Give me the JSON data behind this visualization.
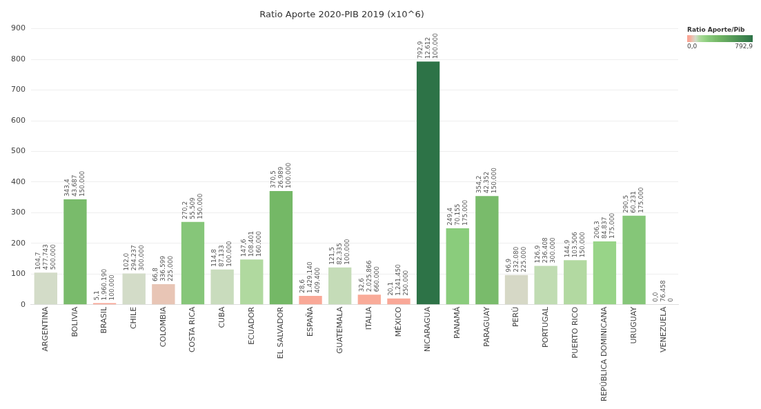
{
  "chart_data": {
    "type": "bar",
    "title": "Ratio Aporte 2020-PIB 2019 (x10^6)",
    "categories": [
      "ARGENTINA",
      "BOLIVIA",
      "BRASIL",
      "CHILE",
      "COLOMBIA",
      "COSTA RICA",
      "CUBA",
      "ECUADOR",
      "EL SALVADOR",
      "ESPAÑA",
      "GUATEMALA",
      "ITALIA",
      "MÉXICO",
      "NICARAGUA",
      "PANAMÁ",
      "PARAGUAY",
      "PERÚ",
      "PORTUGAL",
      "PUERTO RICO",
      "REPÚBLICA DOMINICANA",
      "URUGUAY",
      "VENEZUELA"
    ],
    "values": [
      104.7,
      343.4,
      5.1,
      102.0,
      66.8,
      270.2,
      114.8,
      147.6,
      370.5,
      28.6,
      121.5,
      32.6,
      20.1,
      792.9,
      249.4,
      354.2,
      96.9,
      126.9,
      144.9,
      206.3,
      290.5,
      0.0
    ],
    "colors": [
      "#d3dcc8",
      "#79bb6b",
      "#f9a594",
      "#d3dcc8",
      "#e8c5b5",
      "#86c679",
      "#c9dcbd",
      "#b0d99f",
      "#74b866",
      "#f9a897",
      "#c5dcb8",
      "#f9ab99",
      "#f9a797",
      "#2d7347",
      "#8acc7c",
      "#79bb6b",
      "#d6d8c6",
      "#c0dcb2",
      "#b2d9a1",
      "#98d488",
      "#85c678",
      "#f8a090"
    ],
    "value_labels": [
      "104,7\n477.743\n500.000",
      "343,4\n43.687\n150.000",
      "5,1\n1.960.190\n100.000",
      "102,0\n294.237\n300.000",
      "66,8\n336.599\n225.000",
      "270,2\n55.509\n150.000",
      "114,8\n87.133\n100.000",
      "147,6\n108.401\n160.000",
      "370,5\n26.989\n100.000",
      "28,6\n1.429.140\n409.400",
      "121,5\n82.335\n100.000",
      "32,6\n2.025.866\n660.000",
      "20,1\n1.241.450\n250.000",
      "792,9\n12.612\n100.000",
      "249,4\n70.155\n175.000",
      "354,2\n42.352\n150.000",
      "96,9\n232.080\n225.000",
      "126,9\n236.408\n300.000",
      "144,9\n103.506\n150.000",
      "206,3\n84.837\n175.000",
      "290,5\n60.231\n175.000",
      "0,0\n76.458\n0"
    ],
    "ylim": [
      0,
      900
    ],
    "yticks": [
      0,
      100,
      200,
      300,
      400,
      500,
      600,
      700,
      800,
      900
    ],
    "grid": "y",
    "clabel": "Ratio Aporte/Pib",
    "clim": [
      0,
      792.9
    ],
    "cticks": [
      {
        "value": 0,
        "label": "0,0"
      },
      {
        "value": 792.9,
        "label": "792,9"
      }
    ]
  }
}
